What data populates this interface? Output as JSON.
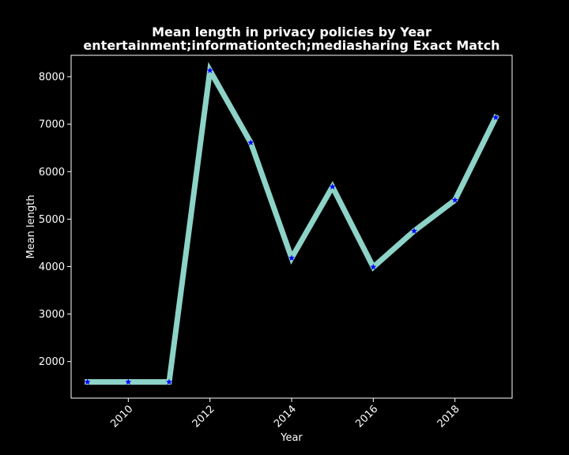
{
  "chart_data": {
    "type": "line",
    "title": "Mean length in privacy policies by Year",
    "subtitle": "entertainment;informationtech;mediasharing Exact Match",
    "xlabel": "Year",
    "ylabel": "Mean length",
    "xlim": [
      2008.6,
      2019.4
    ],
    "ylim": [
      1230,
      8450
    ],
    "x_ticks": [
      2010,
      2012,
      2014,
      2016,
      2018
    ],
    "y_ticks": [
      2000,
      3000,
      4000,
      5000,
      6000,
      7000,
      8000
    ],
    "grid": false,
    "legend": "none",
    "series": [
      {
        "x": [
          2009,
          2010,
          2011,
          2012,
          2013,
          2014,
          2015,
          2016,
          2017,
          2018,
          2019
        ],
        "y": [
          1570,
          1570,
          1570,
          8130,
          6610,
          4180,
          5680,
          3990,
          4750,
          5400,
          7140
        ],
        "line_color": "#8dd3c7",
        "marker_color": "#0000ff",
        "marker": "star"
      }
    ],
    "background_color": "#000000",
    "text_color": "#ffffff"
  }
}
